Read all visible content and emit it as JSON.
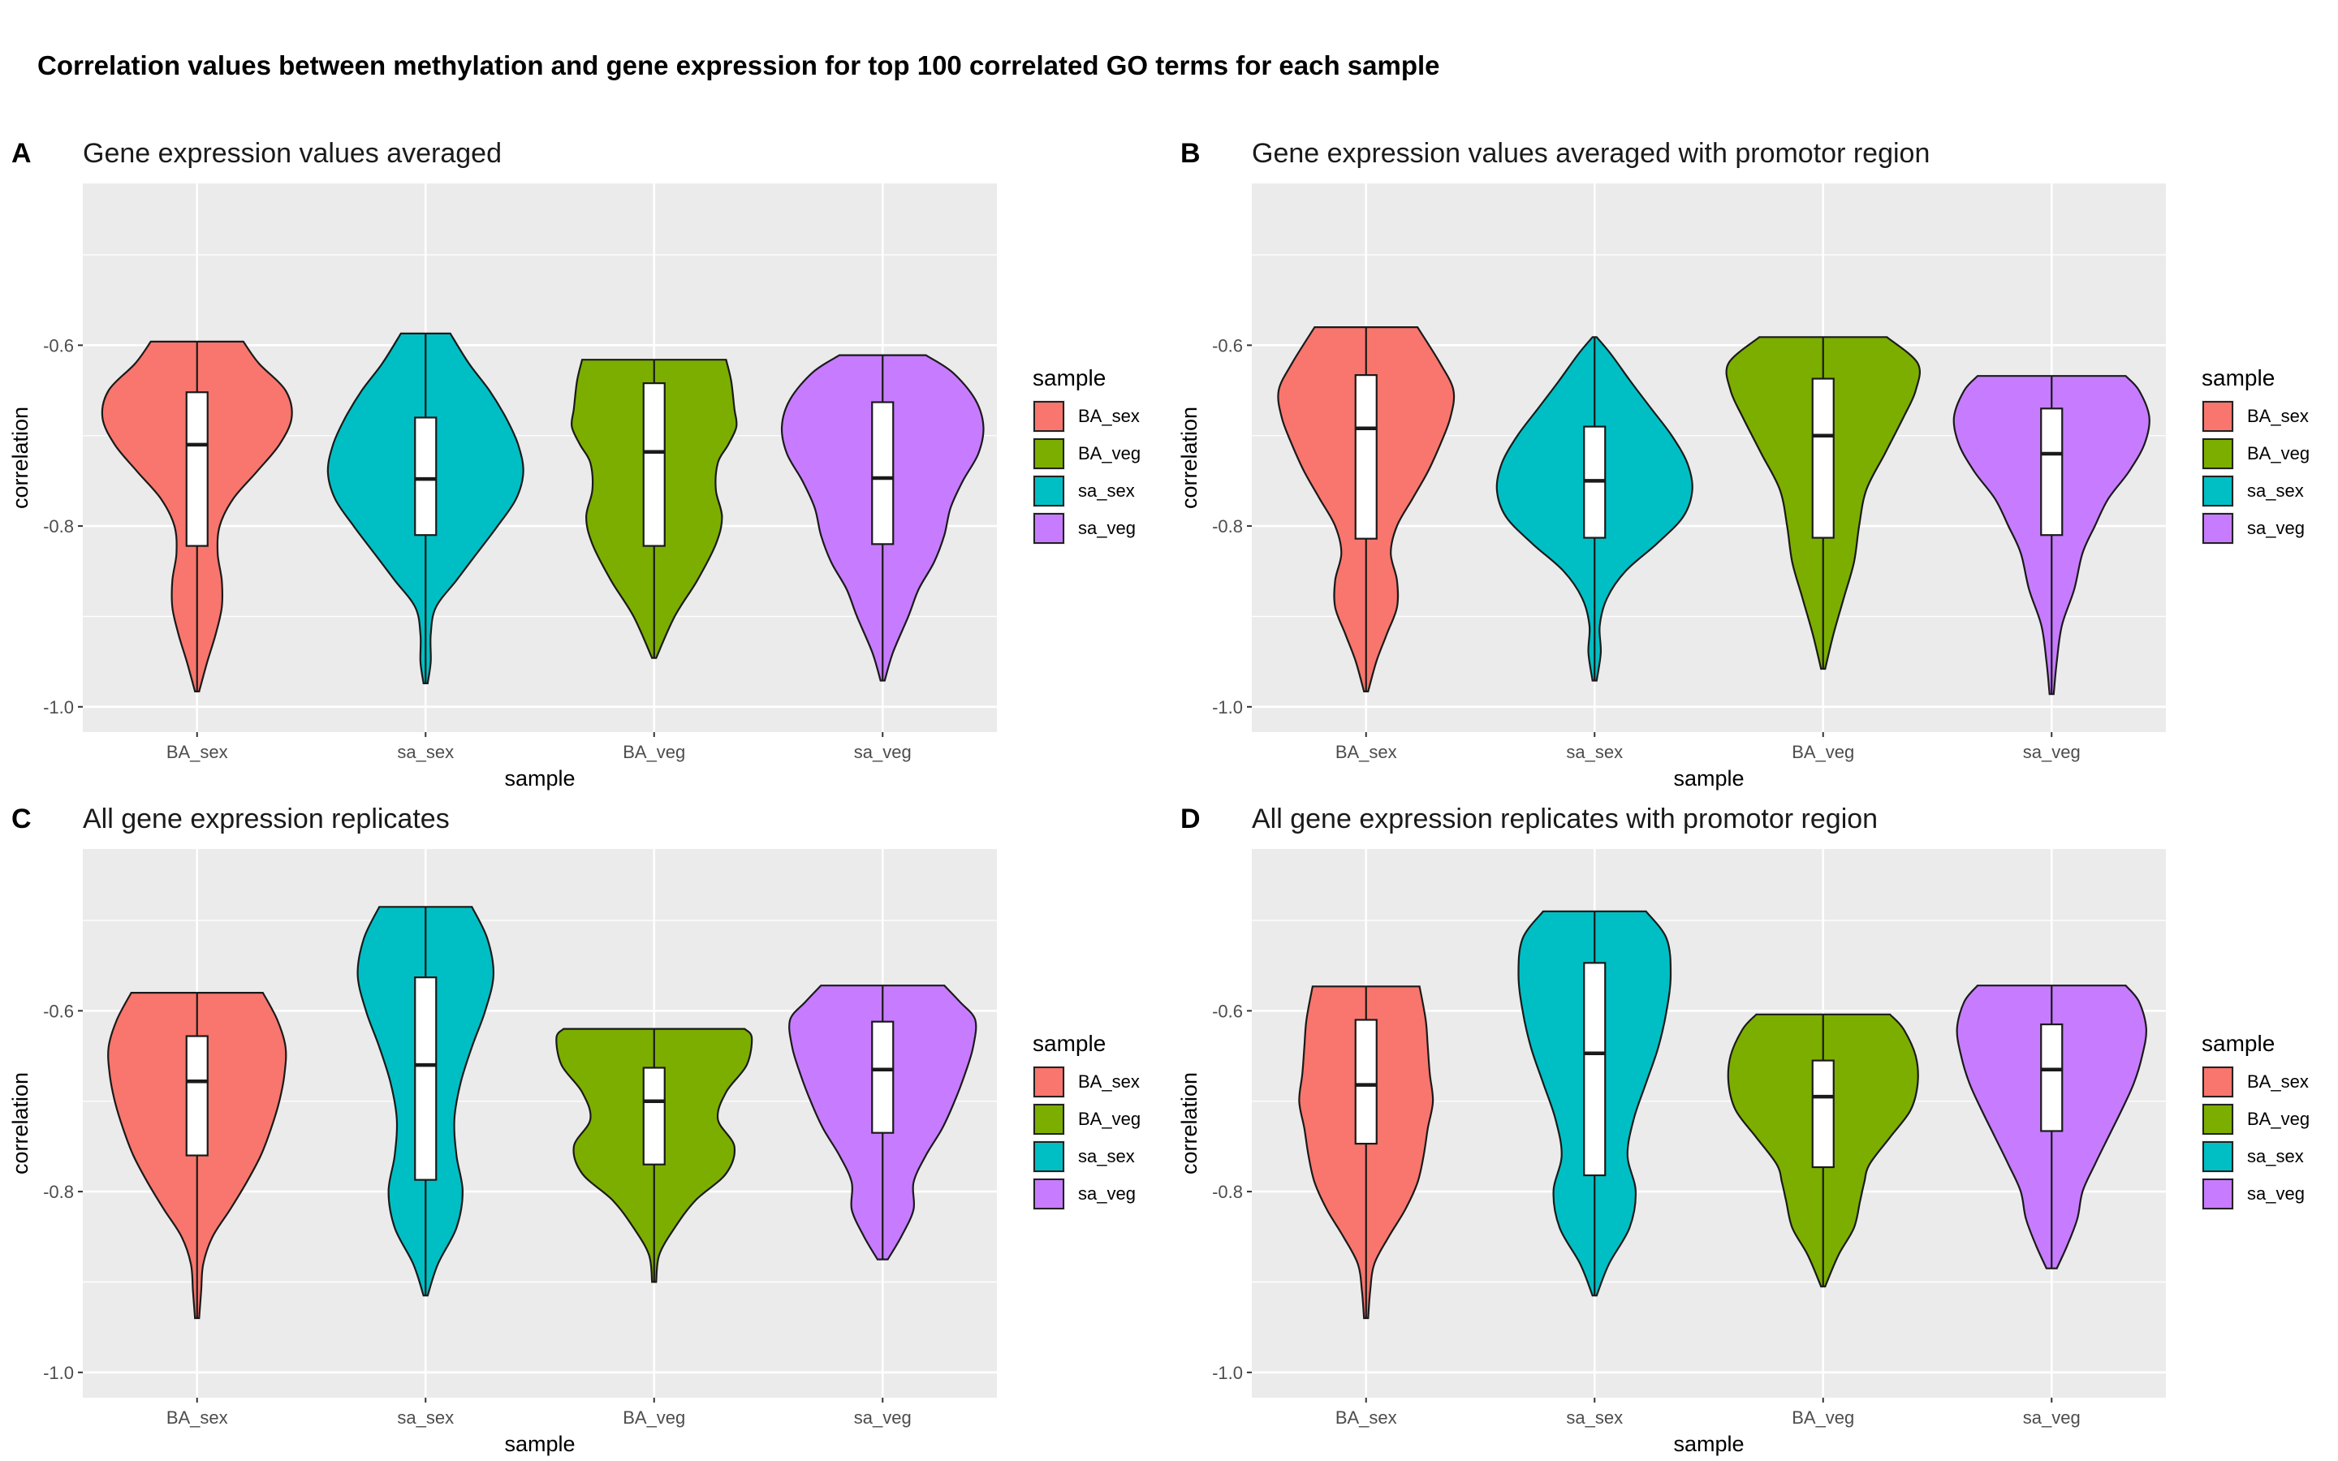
{
  "title": "Correlation values between methylation and gene expression for top 100 correlated GO terms for each sample",
  "colors": {
    "BA_sex": "#F8766D",
    "BA_veg": "#7CAE00",
    "sa_sex": "#00BFC4",
    "sa_veg": "#C77CFF"
  },
  "legend": {
    "title": "sample",
    "items": [
      "BA_sex",
      "BA_veg",
      "sa_sex",
      "sa_veg"
    ]
  },
  "chart_data": [
    {
      "type": "violin",
      "panel": "A",
      "title": "Gene expression values averaged",
      "xlabel": "sample",
      "ylabel": "correlation",
      "categories": [
        "BA_sex",
        "sa_sex",
        "BA_veg",
        "sa_veg"
      ],
      "yticks": [
        -1.0,
        -0.8,
        -0.6
      ],
      "ytick_labels": [
        "-1.0",
        "-0.8",
        "-0.6"
      ],
      "ylim": [
        -1.028,
        -0.421
      ],
      "series": [
        {
          "name": "BA_sex",
          "min": -0.983,
          "max": -0.596,
          "q1": -0.822,
          "median": -0.71,
          "q3": -0.652,
          "density": [
            [
              -0.983,
              0.02
            ],
            [
              -0.95,
              0.1
            ],
            [
              -0.92,
              0.18
            ],
            [
              -0.89,
              0.24
            ],
            [
              -0.86,
              0.24
            ],
            [
              -0.83,
              0.2
            ],
            [
              -0.8,
              0.22
            ],
            [
              -0.77,
              0.35
            ],
            [
              -0.74,
              0.58
            ],
            [
              -0.71,
              0.8
            ],
            [
              -0.68,
              0.92
            ],
            [
              -0.65,
              0.86
            ],
            [
              -0.62,
              0.6
            ],
            [
              -0.596,
              0.45
            ]
          ]
        },
        {
          "name": "sa_sex",
          "min": -0.974,
          "max": -0.587,
          "q1": -0.81,
          "median": -0.748,
          "q3": -0.68,
          "density": [
            [
              -0.974,
              0.02
            ],
            [
              -0.95,
              0.05
            ],
            [
              -0.92,
              0.05
            ],
            [
              -0.89,
              0.1
            ],
            [
              -0.86,
              0.3
            ],
            [
              -0.83,
              0.5
            ],
            [
              -0.8,
              0.7
            ],
            [
              -0.77,
              0.88
            ],
            [
              -0.74,
              0.95
            ],
            [
              -0.71,
              0.9
            ],
            [
              -0.68,
              0.78
            ],
            [
              -0.65,
              0.62
            ],
            [
              -0.62,
              0.42
            ],
            [
              -0.587,
              0.24
            ]
          ]
        },
        {
          "name": "BA_veg",
          "min": -0.946,
          "max": -0.616,
          "q1": -0.822,
          "median": -0.718,
          "q3": -0.642,
          "density": [
            [
              -0.946,
              0.02
            ],
            [
              -0.9,
              0.2
            ],
            [
              -0.86,
              0.42
            ],
            [
              -0.82,
              0.6
            ],
            [
              -0.79,
              0.66
            ],
            [
              -0.76,
              0.6
            ],
            [
              -0.73,
              0.62
            ],
            [
              -0.71,
              0.72
            ],
            [
              -0.69,
              0.8
            ],
            [
              -0.67,
              0.78
            ],
            [
              -0.64,
              0.75
            ],
            [
              -0.616,
              0.7
            ]
          ]
        },
        {
          "name": "sa_veg",
          "min": -0.971,
          "max": -0.611,
          "q1": -0.82,
          "median": -0.747,
          "q3": -0.663,
          "density": [
            [
              -0.971,
              0.02
            ],
            [
              -0.94,
              0.1
            ],
            [
              -0.9,
              0.25
            ],
            [
              -0.87,
              0.35
            ],
            [
              -0.84,
              0.5
            ],
            [
              -0.81,
              0.6
            ],
            [
              -0.78,
              0.66
            ],
            [
              -0.75,
              0.78
            ],
            [
              -0.72,
              0.93
            ],
            [
              -0.69,
              0.98
            ],
            [
              -0.66,
              0.9
            ],
            [
              -0.63,
              0.68
            ],
            [
              -0.611,
              0.42
            ]
          ]
        }
      ]
    },
    {
      "type": "violin",
      "panel": "B",
      "title": "Gene expression values averaged with promotor region",
      "xlabel": "sample",
      "ylabel": "correlation",
      "categories": [
        "BA_sex",
        "sa_sex",
        "BA_veg",
        "sa_veg"
      ],
      "yticks": [
        -1.0,
        -0.8,
        -0.6
      ],
      "ytick_labels": [
        "-1.0",
        "-0.8",
        "-0.6"
      ],
      "ylim": [
        -1.028,
        -0.421
      ],
      "series": [
        {
          "name": "BA_sex",
          "min": -0.983,
          "max": -0.58,
          "q1": -0.814,
          "median": -0.692,
          "q3": -0.633,
          "density": [
            [
              -0.983,
              0.02
            ],
            [
              -0.95,
              0.1
            ],
            [
              -0.92,
              0.2
            ],
            [
              -0.89,
              0.3
            ],
            [
              -0.86,
              0.3
            ],
            [
              -0.83,
              0.24
            ],
            [
              -0.8,
              0.3
            ],
            [
              -0.77,
              0.45
            ],
            [
              -0.74,
              0.6
            ],
            [
              -0.71,
              0.72
            ],
            [
              -0.68,
              0.82
            ],
            [
              -0.65,
              0.85
            ],
            [
              -0.62,
              0.72
            ],
            [
              -0.58,
              0.5
            ]
          ]
        },
        {
          "name": "sa_sex",
          "min": -0.971,
          "max": -0.591,
          "q1": -0.813,
          "median": -0.75,
          "q3": -0.69,
          "density": [
            [
              -0.971,
              0.02
            ],
            [
              -0.94,
              0.06
            ],
            [
              -0.91,
              0.05
            ],
            [
              -0.88,
              0.12
            ],
            [
              -0.85,
              0.3
            ],
            [
              -0.82,
              0.6
            ],
            [
              -0.79,
              0.86
            ],
            [
              -0.76,
              0.95
            ],
            [
              -0.73,
              0.9
            ],
            [
              -0.7,
              0.75
            ],
            [
              -0.67,
              0.55
            ],
            [
              -0.64,
              0.35
            ],
            [
              -0.61,
              0.16
            ],
            [
              -0.591,
              0.02
            ]
          ]
        },
        {
          "name": "BA_veg",
          "min": -0.958,
          "max": -0.591,
          "q1": -0.813,
          "median": -0.7,
          "q3": -0.637,
          "density": [
            [
              -0.958,
              0.02
            ],
            [
              -0.92,
              0.1
            ],
            [
              -0.88,
              0.2
            ],
            [
              -0.84,
              0.3
            ],
            [
              -0.8,
              0.35
            ],
            [
              -0.76,
              0.42
            ],
            [
              -0.72,
              0.6
            ],
            [
              -0.68,
              0.78
            ],
            [
              -0.65,
              0.9
            ],
            [
              -0.62,
              0.92
            ],
            [
              -0.591,
              0.62
            ]
          ]
        },
        {
          "name": "sa_veg",
          "min": -0.986,
          "max": -0.634,
          "q1": -0.81,
          "median": -0.72,
          "q3": -0.67,
          "density": [
            [
              -0.986,
              0.02
            ],
            [
              -0.95,
              0.05
            ],
            [
              -0.91,
              0.1
            ],
            [
              -0.87,
              0.22
            ],
            [
              -0.83,
              0.3
            ],
            [
              -0.8,
              0.42
            ],
            [
              -0.77,
              0.55
            ],
            [
              -0.74,
              0.75
            ],
            [
              -0.71,
              0.9
            ],
            [
              -0.68,
              0.95
            ],
            [
              -0.65,
              0.85
            ],
            [
              -0.634,
              0.72
            ]
          ]
        }
      ]
    },
    {
      "type": "violin",
      "panel": "C",
      "title": "All gene expression replicates",
      "xlabel": "sample",
      "ylabel": "correlation",
      "categories": [
        "BA_sex",
        "sa_sex",
        "BA_veg",
        "sa_veg"
      ],
      "yticks": [
        -1.0,
        -0.8,
        -0.6
      ],
      "ytick_labels": [
        "-1.0",
        "-0.8",
        "-0.6"
      ],
      "ylim": [
        -1.028,
        -0.421
      ],
      "series": [
        {
          "name": "BA_sex",
          "min": -0.94,
          "max": -0.58,
          "q1": -0.76,
          "median": -0.678,
          "q3": -0.628,
          "density": [
            [
              -0.94,
              0.02
            ],
            [
              -0.91,
              0.04
            ],
            [
              -0.88,
              0.06
            ],
            [
              -0.85,
              0.15
            ],
            [
              -0.82,
              0.32
            ],
            [
              -0.79,
              0.48
            ],
            [
              -0.76,
              0.62
            ],
            [
              -0.73,
              0.72
            ],
            [
              -0.7,
              0.8
            ],
            [
              -0.67,
              0.85
            ],
            [
              -0.64,
              0.86
            ],
            [
              -0.61,
              0.78
            ],
            [
              -0.58,
              0.64
            ]
          ]
        },
        {
          "name": "sa_sex",
          "min": -0.915,
          "max": -0.485,
          "q1": -0.787,
          "median": -0.66,
          "q3": -0.563,
          "density": [
            [
              -0.915,
              0.02
            ],
            [
              -0.88,
              0.12
            ],
            [
              -0.84,
              0.3
            ],
            [
              -0.8,
              0.36
            ],
            [
              -0.76,
              0.3
            ],
            [
              -0.72,
              0.28
            ],
            [
              -0.68,
              0.34
            ],
            [
              -0.64,
              0.45
            ],
            [
              -0.6,
              0.58
            ],
            [
              -0.56,
              0.66
            ],
            [
              -0.52,
              0.6
            ],
            [
              -0.485,
              0.45
            ]
          ]
        },
        {
          "name": "BA_veg",
          "min": -0.9,
          "max": -0.62,
          "q1": -0.77,
          "median": -0.7,
          "q3": -0.663,
          "density": [
            [
              -0.9,
              0.02
            ],
            [
              -0.87,
              0.05
            ],
            [
              -0.84,
              0.2
            ],
            [
              -0.81,
              0.4
            ],
            [
              -0.78,
              0.7
            ],
            [
              -0.75,
              0.78
            ],
            [
              -0.72,
              0.62
            ],
            [
              -0.69,
              0.7
            ],
            [
              -0.66,
              0.9
            ],
            [
              -0.63,
              0.95
            ],
            [
              -0.62,
              0.88
            ]
          ]
        },
        {
          "name": "sa_veg",
          "min": -0.875,
          "max": -0.572,
          "q1": -0.735,
          "median": -0.665,
          "q3": -0.612,
          "density": [
            [
              -0.875,
              0.05
            ],
            [
              -0.85,
              0.18
            ],
            [
              -0.82,
              0.3
            ],
            [
              -0.79,
              0.3
            ],
            [
              -0.76,
              0.42
            ],
            [
              -0.73,
              0.58
            ],
            [
              -0.7,
              0.7
            ],
            [
              -0.67,
              0.8
            ],
            [
              -0.64,
              0.88
            ],
            [
              -0.61,
              0.9
            ],
            [
              -0.59,
              0.75
            ],
            [
              -0.572,
              0.6
            ]
          ]
        }
      ]
    },
    {
      "type": "violin",
      "panel": "D",
      "title": "All gene expression replicates with promotor region",
      "xlabel": "sample",
      "ylabel": "correlation",
      "categories": [
        "BA_sex",
        "sa_sex",
        "BA_veg",
        "sa_veg"
      ],
      "yticks": [
        -1.0,
        -0.8,
        -0.6
      ],
      "ytick_labels": [
        "-1.0",
        "-0.8",
        "-0.6"
      ],
      "ylim": [
        -1.028,
        -0.421
      ],
      "series": [
        {
          "name": "BA_sex",
          "min": -0.94,
          "max": -0.573,
          "q1": -0.747,
          "median": -0.682,
          "q3": -0.61,
          "density": [
            [
              -0.94,
              0.02
            ],
            [
              -0.91,
              0.04
            ],
            [
              -0.88,
              0.08
            ],
            [
              -0.85,
              0.22
            ],
            [
              -0.82,
              0.38
            ],
            [
              -0.79,
              0.5
            ],
            [
              -0.76,
              0.56
            ],
            [
              -0.73,
              0.6
            ],
            [
              -0.7,
              0.65
            ],
            [
              -0.67,
              0.62
            ],
            [
              -0.64,
              0.6
            ],
            [
              -0.61,
              0.58
            ],
            [
              -0.573,
              0.52
            ]
          ]
        },
        {
          "name": "sa_sex",
          "min": -0.915,
          "max": -0.49,
          "q1": -0.782,
          "median": -0.647,
          "q3": -0.547,
          "density": [
            [
              -0.915,
              0.02
            ],
            [
              -0.88,
              0.14
            ],
            [
              -0.84,
              0.34
            ],
            [
              -0.8,
              0.4
            ],
            [
              -0.76,
              0.32
            ],
            [
              -0.72,
              0.38
            ],
            [
              -0.68,
              0.5
            ],
            [
              -0.64,
              0.62
            ],
            [
              -0.6,
              0.7
            ],
            [
              -0.56,
              0.74
            ],
            [
              -0.52,
              0.7
            ],
            [
              -0.49,
              0.5
            ]
          ]
        },
        {
          "name": "BA_veg",
          "min": -0.905,
          "max": -0.604,
          "q1": -0.773,
          "median": -0.695,
          "q3": -0.655,
          "density": [
            [
              -0.905,
              0.02
            ],
            [
              -0.87,
              0.15
            ],
            [
              -0.84,
              0.3
            ],
            [
              -0.81,
              0.36
            ],
            [
              -0.79,
              0.4
            ],
            [
              -0.77,
              0.45
            ],
            [
              -0.74,
              0.65
            ],
            [
              -0.71,
              0.85
            ],
            [
              -0.68,
              0.92
            ],
            [
              -0.65,
              0.9
            ],
            [
              -0.62,
              0.78
            ],
            [
              -0.604,
              0.65
            ]
          ]
        },
        {
          "name": "sa_veg",
          "min": -0.885,
          "max": -0.572,
          "q1": -0.733,
          "median": -0.665,
          "q3": -0.615,
          "density": [
            [
              -0.885,
              0.05
            ],
            [
              -0.86,
              0.15
            ],
            [
              -0.83,
              0.25
            ],
            [
              -0.8,
              0.3
            ],
            [
              -0.77,
              0.42
            ],
            [
              -0.74,
              0.55
            ],
            [
              -0.71,
              0.68
            ],
            [
              -0.68,
              0.8
            ],
            [
              -0.65,
              0.88
            ],
            [
              -0.62,
              0.92
            ],
            [
              -0.59,
              0.85
            ],
            [
              -0.572,
              0.72
            ]
          ]
        }
      ]
    }
  ]
}
